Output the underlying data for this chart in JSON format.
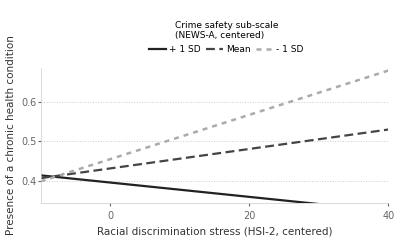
{
  "title": "",
  "xlabel": "Racial discrimination stress (HSI-2, centered)",
  "ylabel": "Presence of a chronic health condition",
  "legend_title": "Crime safety sub-scale\n(NEWS-A, centered)",
  "x_min": -10,
  "x_max": 40,
  "x_ticks": [
    0,
    20,
    40
  ],
  "y_min": 0.345,
  "y_max": 0.685,
  "y_ticks": [
    0.4,
    0.5,
    0.6
  ],
  "lines": [
    {
      "label": "+ 1 SD",
      "x_start": -10,
      "x_end": 40,
      "y_start": 0.415,
      "y_end": 0.325,
      "color": "#222222",
      "linestyle": "solid",
      "linewidth": 1.6
    },
    {
      "label": "Mean",
      "x_start": -10,
      "x_end": 40,
      "y_start": 0.408,
      "y_end": 0.53,
      "color": "#444444",
      "linestyle": "dashed",
      "linewidth": 1.6
    },
    {
      "label": "- 1 SD",
      "x_start": -10,
      "x_end": 40,
      "y_start": 0.4,
      "y_end": 0.678,
      "color": "#aaaaaa",
      "linestyle": "dotted",
      "linewidth": 1.8
    }
  ],
  "background_color": "#ffffff",
  "grid_color": "#cccccc",
  "axis_fontsize": 7,
  "label_fontsize": 7.5,
  "legend_fontsize": 6.5,
  "tick_color": "#666666"
}
